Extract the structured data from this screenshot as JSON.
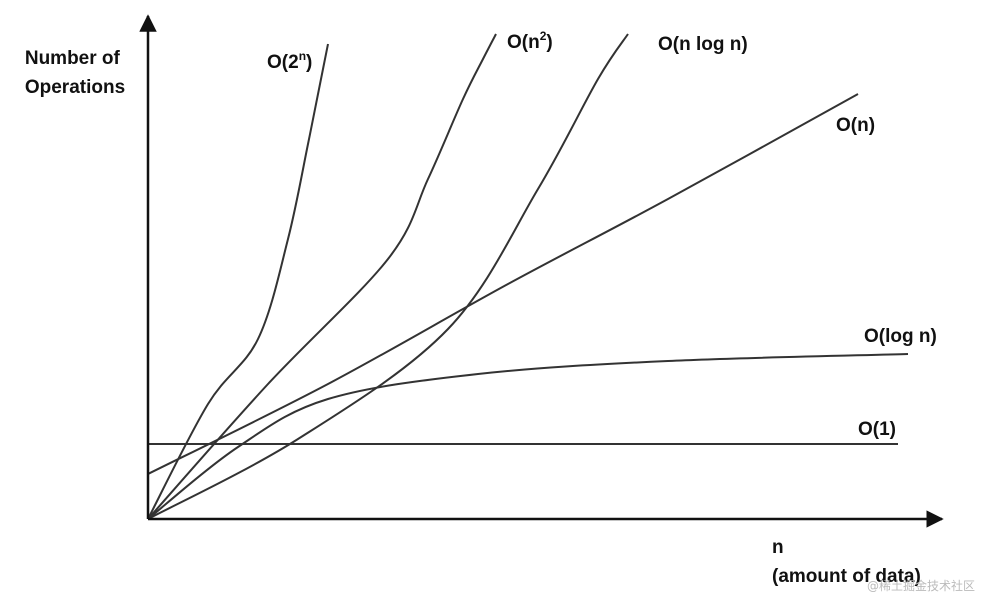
{
  "chart_data": {
    "type": "line",
    "ylabel": [
      "Number of",
      "Operations"
    ],
    "xlabel": [
      "n",
      "(amount of data)"
    ],
    "ticks": "none",
    "grid": false,
    "legend": "inline labels at line ends",
    "colors": {
      "line": "#333333",
      "axis": "#111111",
      "text": "#111111"
    },
    "series": [
      {
        "name": "O(2ⁿ)",
        "base": "O(2",
        "sup": "n",
        "tail": ")",
        "points": [
          [
            0,
            0
          ],
          [
            60,
            115
          ],
          [
            110,
            180
          ],
          [
            140,
            280
          ],
          [
            160,
            375
          ],
          [
            175,
            450
          ],
          [
            180,
            475
          ]
        ]
      },
      {
        "name": "O(n²)",
        "base": "O(n",
        "sup": "2",
        "tail": ")",
        "points": [
          [
            0,
            0
          ],
          [
            120,
            135
          ],
          [
            240,
            260
          ],
          [
            280,
            340
          ],
          [
            315,
            420
          ],
          [
            335,
            460
          ],
          [
            348,
            485
          ]
        ]
      },
      {
        "name": "O(n log n)",
        "base": "O(n log n)",
        "sup": "",
        "tail": "",
        "points": [
          [
            0,
            0
          ],
          [
            150,
            80
          ],
          [
            300,
            190
          ],
          [
            390,
            330
          ],
          [
            450,
            440
          ],
          [
            480,
            485
          ]
        ]
      },
      {
        "name": "O(n)",
        "base": "O(n)",
        "sup": "",
        "tail": "",
        "points": [
          [
            0,
            45
          ],
          [
            180,
            135
          ],
          [
            360,
            235
          ],
          [
            520,
            320
          ],
          [
            710,
            425
          ]
        ]
      },
      {
        "name": "O(log n)",
        "base": "O(log n)",
        "sup": "",
        "tail": "",
        "points": [
          [
            0,
            0
          ],
          [
            90,
            72
          ],
          [
            180,
            120
          ],
          [
            330,
            145
          ],
          [
            520,
            158
          ],
          [
            760,
            165
          ]
        ]
      },
      {
        "name": "O(1)",
        "base": "O(1)",
        "sup": "",
        "tail": "",
        "points": [
          [
            0,
            75
          ],
          [
            750,
            75
          ]
        ]
      }
    ]
  },
  "watermark": "@稀土掘金技术社区"
}
